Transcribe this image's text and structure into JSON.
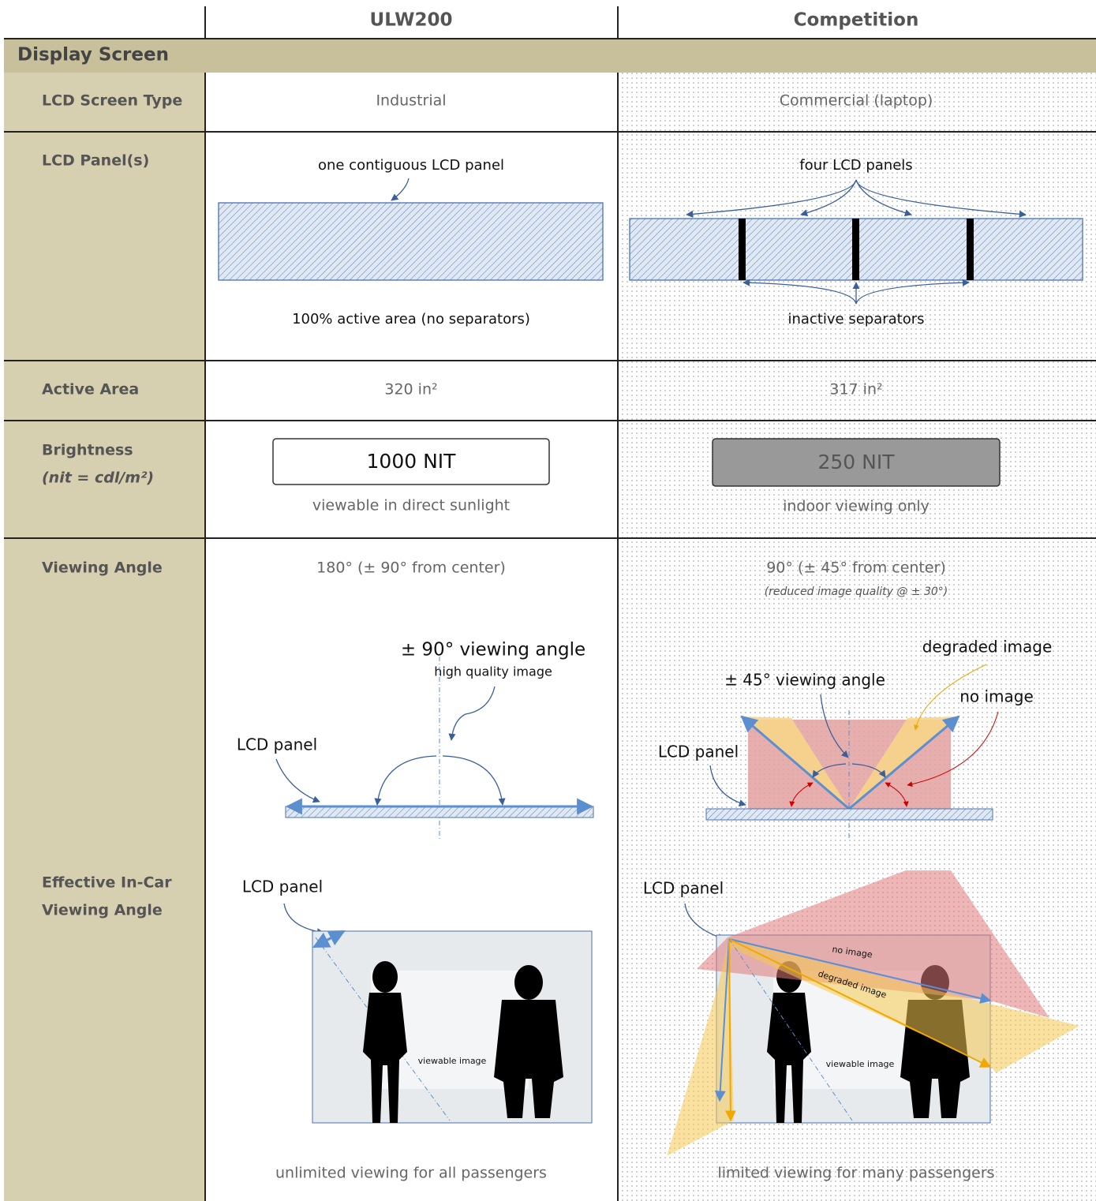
{
  "header": {
    "columns": [
      "ULW200",
      "Competition"
    ]
  },
  "section": {
    "title": "Display Screen"
  },
  "rows": {
    "screen_type": {
      "label": "LCD Screen Type",
      "ulw200": "Industrial",
      "competition": "Commercial (laptop)"
    },
    "panels": {
      "label": "LCD Panel(s)",
      "ulw200": {
        "top_note": "one contiguous LCD panel",
        "bottom_note": "100% active area (no separators)"
      },
      "competition": {
        "top_note": "four LCD panels",
        "bottom_note": "inactive separators"
      }
    },
    "active_area": {
      "label": "Active Area",
      "ulw200": "320 in²",
      "competition": "317 in²"
    },
    "brightness": {
      "label": "Brightness",
      "sublabel": "(nit = cdl/m²)",
      "ulw200": {
        "box": "1000 NIT",
        "note": "viewable in direct sunlight"
      },
      "competition": {
        "box": "250 NIT",
        "note": "indoor viewing only"
      }
    },
    "viewing_angle": {
      "label": "Viewing Angle",
      "ulw200": {
        "value": "180° (± 90° from center)",
        "angle_label": "± 90° viewing angle",
        "quality": "high quality image",
        "panel_label": "LCD panel"
      },
      "competition": {
        "value": "90° (± 45° from center)",
        "note": "(reduced image quality @ ± 30°)",
        "degraded": "degraded image",
        "angle_label": "± 45° viewing angle",
        "no_image": "no image",
        "panel_label": "LCD panel"
      }
    },
    "in_car": {
      "label_lines": [
        "Effective In-Car",
        "Viewing Angle"
      ],
      "ulw200": {
        "panel_label": "LCD panel",
        "image_label": "viewable image",
        "summary": "unlimited viewing for all passengers"
      },
      "competition": {
        "panel_label": "LCD panel",
        "no_image": "no image",
        "degraded": "degraded image",
        "image_label": "viewable image",
        "summary": "limited viewing for many passengers"
      }
    }
  }
}
